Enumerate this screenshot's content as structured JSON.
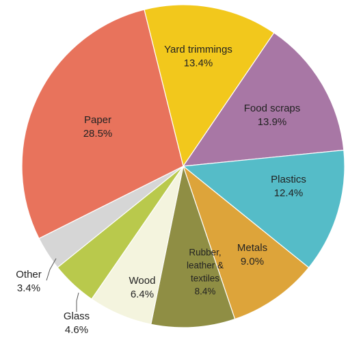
{
  "chart_data": {
    "type": "pie",
    "title": "",
    "slices": [
      {
        "name": "Yard trimmings",
        "lines": [
          "Yard trimmings"
        ],
        "value_label": "13.4%",
        "value": 13.4,
        "color": "#f2c81c"
      },
      {
        "name": "Food scraps",
        "lines": [
          "Food scraps"
        ],
        "value_label": "13.9%",
        "value": 13.9,
        "color": "#a877a5"
      },
      {
        "name": "Plastics",
        "lines": [
          "Plastics"
        ],
        "value_label": "12.4%",
        "value": 12.4,
        "color": "#55bcc8"
      },
      {
        "name": "Metals",
        "lines": [
          "Metals"
        ],
        "value_label": "9.0%",
        "value": 9.0,
        "color": "#dda43a"
      },
      {
        "name": "Rubber, leather & textiles",
        "lines": [
          "Rubber,",
          "leather &",
          "textiles"
        ],
        "value_label": "8.4%",
        "value": 8.4,
        "color": "#8f8e44"
      },
      {
        "name": "Wood",
        "lines": [
          "Wood"
        ],
        "value_label": "6.4%",
        "value": 6.4,
        "color": "#f4f4de"
      },
      {
        "name": "Glass",
        "lines": [
          "Glass"
        ],
        "value_label": "4.6%",
        "value": 4.6,
        "color": "#b9c94c"
      },
      {
        "name": "Other",
        "lines": [
          "Other"
        ],
        "value_label": "3.4%",
        "value": 3.4,
        "color": "#d6d6d6"
      },
      {
        "name": "Paper",
        "lines": [
          "Paper"
        ],
        "value_label": "28.5%",
        "value": 28.5,
        "color": "#e8735c"
      }
    ],
    "legend": "none",
    "labels": "on-slice"
  }
}
